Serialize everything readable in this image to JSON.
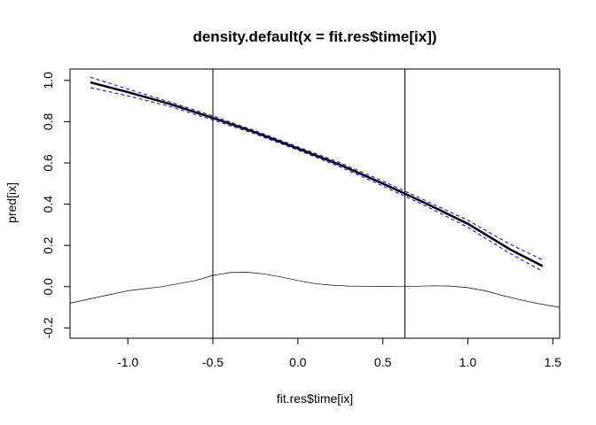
{
  "chart_data": {
    "type": "line",
    "title": "density.default(x = fit.res$time[ix])",
    "xlabel": "fit.res$time[ix]",
    "ylabel": "pred[ix]",
    "xlim": [
      -1.34,
      1.54
    ],
    "ylim": [
      -0.25,
      1.055
    ],
    "x_ticks": [
      -1.0,
      -0.5,
      0.0,
      0.5,
      1.0,
      1.5
    ],
    "x_tick_labels": [
      "-1.0",
      "-0.5",
      "0.0",
      "0.5",
      "1.0",
      "1.5"
    ],
    "y_ticks": [
      -0.2,
      0.0,
      0.2,
      0.4,
      0.6,
      0.8,
      1.0
    ],
    "y_tick_labels": [
      "-0.2",
      "0.0",
      "0.2",
      "0.4",
      "0.6",
      "0.8",
      "1.0"
    ],
    "grid": false,
    "vertical_lines": [
      -0.5,
      0.63
    ],
    "series": [
      {
        "color": "#000000",
        "style": "solid-thick",
        "x": [
          -1.22,
          -1.0,
          -0.75,
          -0.5,
          -0.25,
          0.0,
          0.25,
          0.5,
          0.75,
          1.0,
          1.25,
          1.44
        ],
        "y": [
          0.99,
          0.943,
          0.885,
          0.818,
          0.748,
          0.67,
          0.59,
          0.5,
          0.405,
          0.305,
          0.18,
          0.1
        ]
      },
      {
        "color": "#0000ff",
        "style": "dashed",
        "x": [
          -1.22,
          -1.0,
          -0.75,
          -0.5,
          -0.25,
          0.0,
          0.25,
          0.5,
          0.75,
          1.0,
          1.25,
          1.44
        ],
        "y": [
          1.015,
          0.958,
          0.895,
          0.828,
          0.756,
          0.678,
          0.6,
          0.512,
          0.418,
          0.322,
          0.205,
          0.13
        ]
      },
      {
        "color": "#0000ff",
        "style": "dashed",
        "x": [
          -1.22,
          -1.0,
          -0.75,
          -0.5,
          -0.25,
          0.0,
          0.25,
          0.5,
          0.75,
          1.0,
          1.25,
          1.44
        ],
        "y": [
          0.965,
          0.925,
          0.873,
          0.808,
          0.74,
          0.662,
          0.58,
          0.488,
          0.392,
          0.288,
          0.16,
          0.075
        ]
      },
      {
        "color": "#000000",
        "style": "thin",
        "x": [
          -1.34,
          -1.2,
          -1.0,
          -0.8,
          -0.6,
          -0.5,
          -0.4,
          -0.3,
          -0.2,
          -0.1,
          0.0,
          0.1,
          0.2,
          0.3,
          0.4,
          0.5,
          0.6,
          0.7,
          0.8,
          0.9,
          1.0,
          1.1,
          1.2,
          1.3,
          1.4,
          1.54
        ],
        "y": [
          -0.08,
          -0.055,
          -0.02,
          0.0,
          0.03,
          0.055,
          0.068,
          0.07,
          0.062,
          0.047,
          0.03,
          0.015,
          0.007,
          0.003,
          0.002,
          0.001,
          0.0,
          0.002,
          0.004,
          0.003,
          -0.005,
          -0.02,
          -0.042,
          -0.062,
          -0.08,
          -0.1
        ]
      }
    ]
  }
}
